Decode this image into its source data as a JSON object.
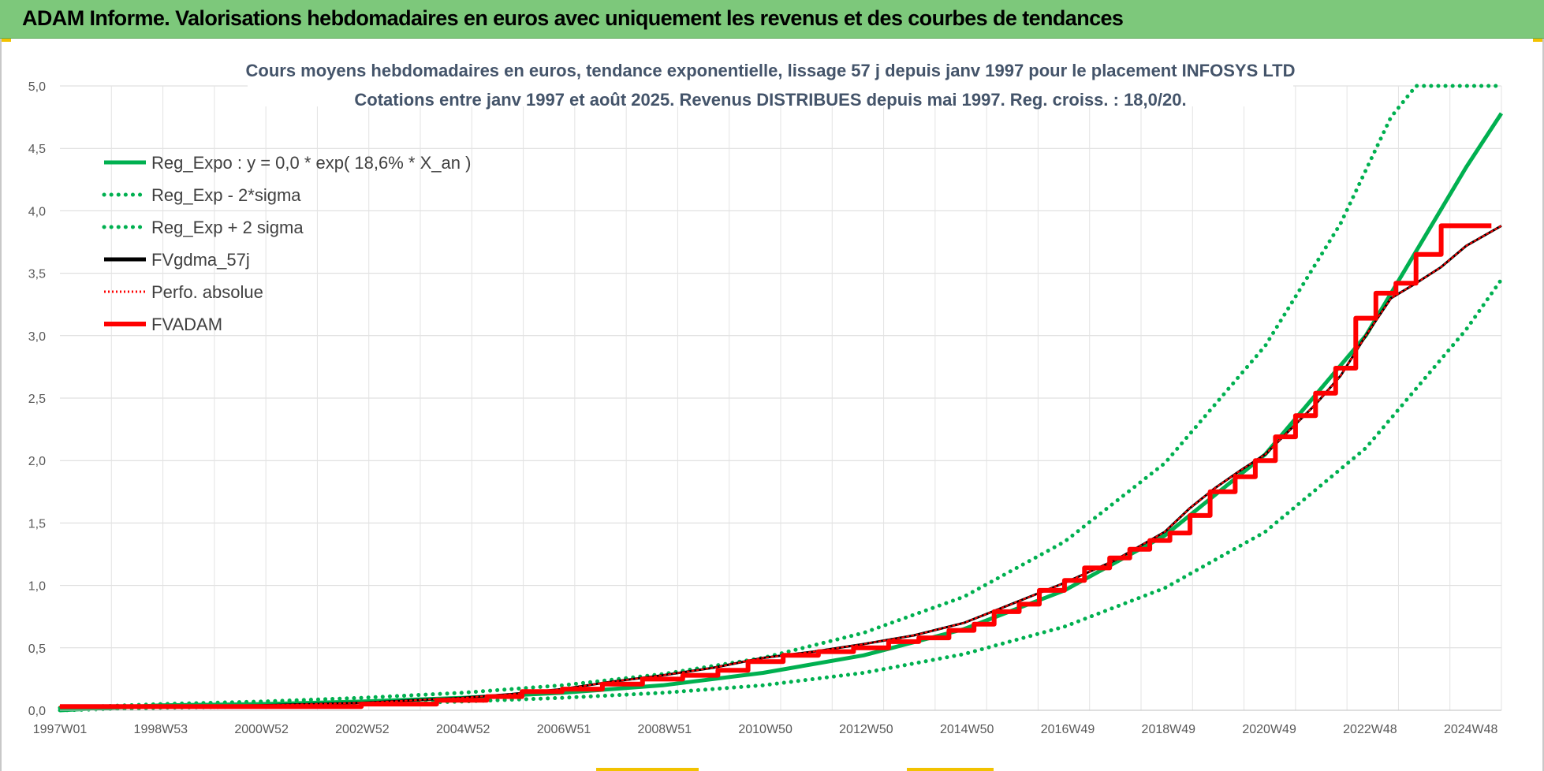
{
  "header": {
    "title": "ADAM Informe. Valorisations hebdomadaires en euros avec uniquement les revenus et des courbes de tendances"
  },
  "colors": {
    "header_bg": "#7dc87b",
    "green": "#00b050",
    "black": "#000000",
    "red": "#ff0000",
    "title_text": "#44546a",
    "accent_yellow": "#f2c200"
  },
  "chart_data": {
    "type": "line",
    "title": "Cours moyens hebdomadaires en euros, tendance exponentielle, lissage 57 j depuis janv 1997  pour le placement INFOSYS LTD",
    "subtitle": "Cotations entre janv 1997 et août 2025.  Revenus DISTRIBUES depuis mai 1997. Reg. croiss. : 18,0/20.",
    "xlabel": "",
    "ylabel": "",
    "ylim": [
      0,
      5
    ],
    "yticks": [
      "0,0",
      "0,5",
      "1,0",
      "1,5",
      "2,0",
      "2,5",
      "3,0",
      "3,5",
      "4,0",
      "4,5",
      "5,0"
    ],
    "xlim": [
      1997.0,
      2025.7
    ],
    "xticks": [
      "1997W01",
      "1998W53",
      "2000W52",
      "2002W52",
      "2004W52",
      "2006W51",
      "2008W51",
      "2010W50",
      "2012W50",
      "2014W50",
      "2016W49",
      "2018W49",
      "2020W49",
      "2022W48",
      "2024W48"
    ],
    "grid": true,
    "legend_position": "top-left",
    "series": [
      {
        "name": "Reg_Expo : y = 0,0 * exp( 18,6% *  X_an )",
        "style": "solid",
        "color": "#00b050",
        "x": [
          1997.0,
          1999.0,
          2001.0,
          2003.0,
          2005.0,
          2007.0,
          2009.0,
          2011.0,
          2013.0,
          2015.0,
          2017.0,
          2019.0,
          2021.0,
          2023.0,
          2025.0,
          2025.7
        ],
        "y": [
          0.0,
          0.04,
          0.05,
          0.07,
          0.1,
          0.14,
          0.2,
          0.3,
          0.44,
          0.65,
          0.96,
          1.4,
          2.05,
          3.0,
          4.35,
          4.78
        ]
      },
      {
        "name": "Reg_Exp - 2*sigma",
        "style": "dotted",
        "color": "#00b050",
        "x": [
          1997.0,
          1999.0,
          2001.0,
          2003.0,
          2005.0,
          2007.0,
          2009.0,
          2011.0,
          2013.0,
          2015.0,
          2017.0,
          2019.0,
          2021.0,
          2023.0,
          2025.0,
          2025.7
        ],
        "y": [
          0.0,
          0.02,
          0.03,
          0.05,
          0.07,
          0.1,
          0.14,
          0.2,
          0.3,
          0.45,
          0.67,
          0.98,
          1.43,
          2.1,
          3.05,
          3.45
        ]
      },
      {
        "name": "Reg_Exp + 2 sigma",
        "style": "dotted",
        "color": "#00b050",
        "x": [
          1997.0,
          1999.0,
          2001.0,
          2003.0,
          2005.0,
          2007.0,
          2009.0,
          2011.0,
          2013.0,
          2015.0,
          2017.0,
          2019.0,
          2021.0,
          2022.5,
          2023.5,
          2024.0,
          2025.7
        ],
        "y": [
          0.02,
          0.05,
          0.07,
          0.1,
          0.14,
          0.2,
          0.29,
          0.42,
          0.62,
          0.91,
          1.35,
          1.98,
          2.92,
          3.9,
          4.75,
          5.0,
          5.0
        ]
      },
      {
        "name": "FVgdma_57j",
        "style": "solid",
        "color": "#000000",
        "x": [
          1997.0,
          1999.0,
          2001.0,
          2003.0,
          2005.0,
          2006.0,
          2007.0,
          2008.0,
          2009.0,
          2010.0,
          2011.0,
          2012.0,
          2013.0,
          2014.0,
          2015.0,
          2016.0,
          2017.0,
          2018.0,
          2019.0,
          2019.5,
          2020.0,
          2020.5,
          2021.0,
          2021.5,
          2022.0,
          2022.5,
          2023.0,
          2023.5,
          2024.0,
          2024.5,
          2025.0,
          2025.7
        ],
        "y": [
          0.03,
          0.03,
          0.04,
          0.06,
          0.1,
          0.13,
          0.17,
          0.23,
          0.28,
          0.34,
          0.42,
          0.47,
          0.53,
          0.6,
          0.7,
          0.86,
          1.02,
          1.2,
          1.43,
          1.62,
          1.78,
          1.92,
          2.05,
          2.25,
          2.45,
          2.68,
          3.0,
          3.3,
          3.42,
          3.55,
          3.72,
          3.88
        ]
      },
      {
        "name": "Perfo. absolue",
        "style": "dotted",
        "color": "#ff0000",
        "x": [
          1997.0,
          1999.0,
          2001.0,
          2003.0,
          2005.0,
          2006.0,
          2007.0,
          2008.0,
          2009.0,
          2010.0,
          2011.0,
          2012.0,
          2013.0,
          2014.0,
          2015.0,
          2016.0,
          2017.0,
          2018.0,
          2019.0,
          2019.5,
          2020.0,
          2020.5,
          2021.0,
          2021.5,
          2022.0,
          2022.5,
          2023.0,
          2023.5,
          2024.0,
          2024.5,
          2025.0,
          2025.7
        ],
        "y": [
          0.03,
          0.03,
          0.04,
          0.06,
          0.1,
          0.13,
          0.17,
          0.23,
          0.28,
          0.34,
          0.42,
          0.47,
          0.53,
          0.6,
          0.7,
          0.86,
          1.02,
          1.2,
          1.43,
          1.62,
          1.78,
          1.92,
          2.05,
          2.25,
          2.45,
          2.68,
          3.0,
          3.3,
          3.42,
          3.55,
          3.72,
          3.88
        ]
      },
      {
        "name": "FVADAM",
        "style": "solid-thick",
        "color": "#ff0000",
        "x": [
          1997.0,
          2003.0,
          2004.5,
          2005.5,
          2006.2,
          2007.0,
          2007.8,
          2008.6,
          2009.4,
          2010.1,
          2010.7,
          2011.4,
          2012.1,
          2012.8,
          2013.5,
          2014.1,
          2014.7,
          2015.2,
          2015.6,
          2016.1,
          2016.5,
          2017.0,
          2017.4,
          2017.9,
          2018.3,
          2018.7,
          2019.1,
          2019.5,
          2019.9,
          2020.4,
          2020.8,
          2021.2,
          2021.6,
          2022.0,
          2022.4,
          2022.8,
          2023.2,
          2023.6,
          2024.0,
          2024.5,
          2025.0,
          2025.5
        ],
        "y": [
          0.03,
          0.05,
          0.08,
          0.11,
          0.15,
          0.17,
          0.21,
          0.25,
          0.28,
          0.32,
          0.39,
          0.44,
          0.47,
          0.5,
          0.55,
          0.58,
          0.64,
          0.69,
          0.79,
          0.85,
          0.96,
          1.04,
          1.14,
          1.22,
          1.29,
          1.36,
          1.42,
          1.56,
          1.75,
          1.87,
          2.0,
          2.19,
          2.36,
          2.54,
          2.74,
          3.14,
          3.34,
          3.42,
          3.65,
          3.88,
          3.88,
          3.88
        ]
      }
    ]
  }
}
